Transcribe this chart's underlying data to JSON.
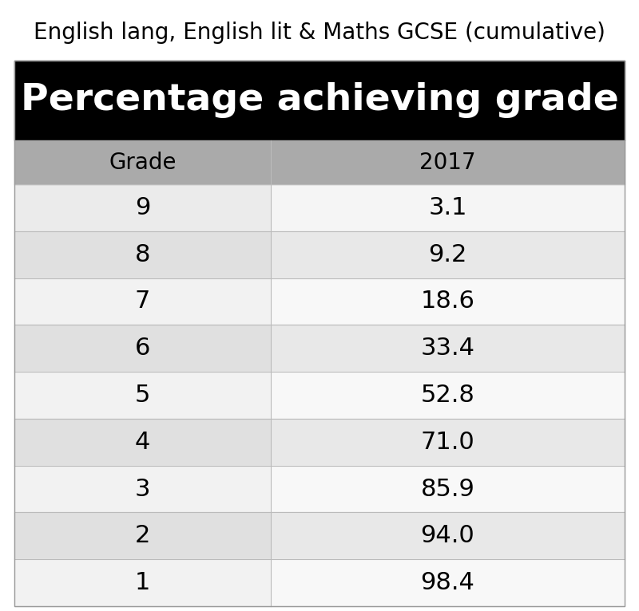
{
  "title": "English lang, English lit & Maths GCSE (cumulative)",
  "header_bg": "#000000",
  "header_text": "Percentage achieving grade",
  "header_text_color": "#ffffff",
  "col_header_bg": "#aaaaaa",
  "col_header_text_color": "#000000",
  "col_headers": [
    "Grade",
    "2017"
  ],
  "grades": [
    "9",
    "8",
    "7",
    "6",
    "5",
    "4",
    "3",
    "2",
    "1"
  ],
  "values": [
    "3.1",
    "9.2",
    "18.6",
    "33.4",
    "52.8",
    "71.0",
    "85.9",
    "94.0",
    "98.4"
  ],
  "row_colors": [
    "#ebebeb",
    "#d8d8d8",
    "#f0f0f0",
    "#d8d8d8",
    "#f0f0f0",
    "#d8d8d8",
    "#f0f0f0",
    "#d8d8d8",
    "#f0f0f0"
  ],
  "right_row_colors": [
    "#f5f5f5",
    "#e8e8e8",
    "#f9f9f9",
    "#e8e8e8",
    "#f9f9f9",
    "#e8e8e8",
    "#f9f9f9",
    "#e8e8e8",
    "#f9f9f9"
  ],
  "divider_color": "#bbbbbb",
  "title_fontsize": 20,
  "header_fontsize": 34,
  "col_header_fontsize": 20,
  "cell_fontsize": 22,
  "col_split": 0.42
}
